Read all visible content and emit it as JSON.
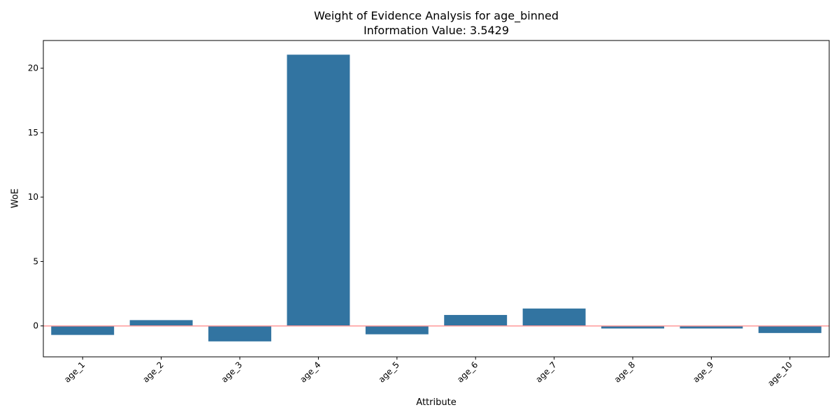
{
  "chart_data": {
    "type": "bar",
    "title": "Weight of Evidence Analysis for age_binned",
    "subtitle": "Information Value: 3.5429",
    "xlabel": "Attribute",
    "ylabel": "WoE",
    "categories": [
      "age_1",
      "age_2",
      "age_3",
      "age_4",
      "age_5",
      "age_6",
      "age_7",
      "age_8",
      "age_9",
      "age_10"
    ],
    "values": [
      -0.7,
      0.45,
      -1.2,
      21.05,
      -0.65,
      0.85,
      1.35,
      -0.2,
      -0.2,
      -0.55
    ],
    "ylim": [
      -2.4,
      22.15
    ],
    "yticks": [
      0,
      5,
      10,
      15,
      20
    ],
    "grid": false,
    "reference_line": 0,
    "colors": {
      "bar": "#3274a1",
      "reference_line": "#ff9999"
    }
  }
}
